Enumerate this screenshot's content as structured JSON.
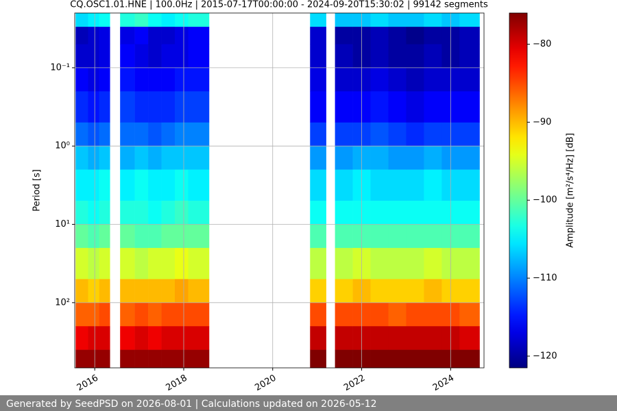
{
  "chart_data": {
    "type": "heatmap",
    "title": "CQ.OSC1.01.HNE | 100.0Hz | 2015-07-17T00:00:00 - 2024-09-20T15:30:02 | 99142 segments",
    "x_edges": [
      2015.57,
      2015.85,
      2016.1,
      2016.34,
      2016.57,
      2016.9,
      2017.2,
      2017.5,
      2017.8,
      2018.1,
      2018.57,
      2020.84,
      2021.2,
      2021.4,
      2021.8,
      2022.2,
      2022.6,
      2023.0,
      2023.4,
      2023.8,
      2024.2,
      2024.65
    ],
    "y_edges": [
      0.02,
      0.03,
      0.05,
      0.1,
      0.2,
      0.5,
      1,
      2,
      5,
      10,
      20,
      50,
      100,
      200,
      400,
      680
    ],
    "values": [
      [
        -106,
        -119,
        -118,
        -116,
        -114,
        -111,
        -107,
        -105,
        -103,
        -100,
        -95,
        -90,
        -86,
        -81,
        -77
      ],
      [
        -105,
        -118,
        -118,
        -117,
        -115,
        -112,
        -108,
        -105,
        -104,
        -101,
        -96,
        -91,
        -86,
        -80,
        -77
      ],
      [
        -104,
        -117,
        -117,
        -116,
        -114,
        -111,
        -107,
        -104,
        -103,
        -100,
        -95,
        -90,
        -85,
        -80,
        -77
      ],
      null,
      [
        -103,
        -117,
        -116,
        -115,
        -113,
        -111,
        -108,
        -105,
        -103,
        -100,
        -95,
        -90,
        -86,
        -81,
        -77
      ],
      [
        -102,
        -116,
        -117,
        -116,
        -114,
        -111,
        -107,
        -104,
        -103,
        -101,
        -96,
        -90,
        -85,
        -80,
        -77
      ],
      [
        -104,
        -118,
        -118,
        -116,
        -114,
        -112,
        -108,
        -105,
        -104,
        -101,
        -95,
        -90,
        -86,
        -81,
        -77
      ],
      [
        -105,
        -118,
        -117,
        -116,
        -114,
        -111,
        -107,
        -105,
        -103,
        -100,
        -95,
        -90,
        -85,
        -80,
        -77
      ],
      [
        -104,
        -117,
        -117,
        -115,
        -113,
        -110,
        -107,
        -104,
        -102,
        -100,
        -94,
        -89,
        -85,
        -80,
        -77
      ],
      [
        -103,
        -116,
        -116,
        -115,
        -113,
        -110,
        -107,
        -105,
        -103,
        -100,
        -95,
        -90,
        -85,
        -80,
        -77
      ],
      null,
      [
        -106,
        -118,
        -118,
        -117,
        -116,
        -113,
        -109,
        -106,
        -104,
        -101,
        -96,
        -91,
        -85,
        -79,
        -76
      ],
      null,
      [
        -107,
        -120,
        -119,
        -118,
        -116,
        -113,
        -109,
        -106,
        -104,
        -101,
        -96,
        -91,
        -85,
        -79,
        -76
      ],
      [
        -107,
        -120,
        -120,
        -118,
        -116,
        -113,
        -108,
        -105,
        -104,
        -101,
        -95,
        -90,
        -85,
        -79,
        -76
      ],
      [
        -106,
        -119,
        -119,
        -117,
        -115,
        -112,
        -108,
        -106,
        -104,
        -101,
        -96,
        -91,
        -85,
        -79,
        -76
      ],
      [
        -107,
        -120,
        -120,
        -118,
        -116,
        -113,
        -109,
        -106,
        -104,
        -101,
        -96,
        -91,
        -86,
        -79,
        -76
      ],
      [
        -107,
        -121,
        -120,
        -119,
        -117,
        -114,
        -109,
        -106,
        -104,
        -101,
        -96,
        -91,
        -85,
        -79,
        -76
      ],
      [
        -106,
        -120,
        -119,
        -118,
        -116,
        -113,
        -108,
        -105,
        -104,
        -101,
        -95,
        -90,
        -85,
        -79,
        -76
      ],
      [
        -107,
        -120,
        -120,
        -118,
        -116,
        -113,
        -109,
        -106,
        -104,
        -101,
        -96,
        -91,
        -85,
        -79,
        -76
      ],
      [
        -106,
        -119,
        -119,
        -118,
        -116,
        -113,
        -109,
        -106,
        -104,
        -101,
        -96,
        -91,
        -86,
        -80,
        -76
      ]
    ],
    "xlim": [
      2015.55,
      2024.75
    ],
    "xticks": [
      2016,
      2018,
      2020,
      2022,
      2024
    ],
    "ylim": [
      0.02,
      680
    ],
    "ylog": true,
    "yinvert": true,
    "yticks": [
      {
        "value": 0.1,
        "label": "10⁻¹"
      },
      {
        "value": 1,
        "label": "10⁰"
      },
      {
        "value": 10,
        "label": "10¹"
      },
      {
        "value": 100,
        "label": "10²"
      }
    ],
    "ylabel": "Period [s]",
    "colormap": "jet",
    "clim": [
      -121.5,
      -76
    ],
    "cticks": [
      {
        "value": -120,
        "label": "−120"
      },
      {
        "value": -110,
        "label": "−110"
      },
      {
        "value": -100,
        "label": "−100"
      },
      {
        "value": -90,
        "label": "−90"
      },
      {
        "value": -80,
        "label": "−80"
      }
    ],
    "clabel": "Amplitude [m²/s⁴/Hz] [dB]",
    "grid": true
  },
  "footer": "Generated by SeedPSD on 2026-08-01 | Calculations updated on 2026-05-12"
}
